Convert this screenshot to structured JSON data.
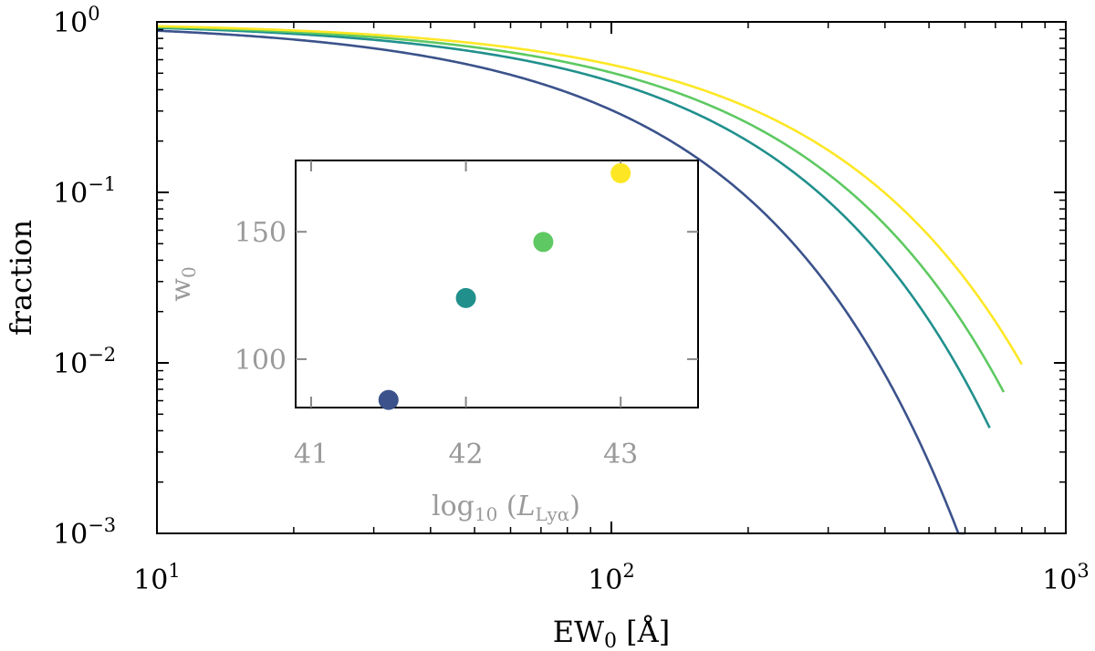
{
  "chart_data": [
    {
      "type": "line",
      "xlabel": {
        "main": "EW",
        "sub": "0",
        "unit": " [Å]"
      },
      "ylabel": "fraction",
      "xscale": "log",
      "yscale": "log",
      "xlim": [
        10,
        1000
      ],
      "ylim": [
        0.001,
        1
      ],
      "xticks": [
        {
          "value": 10,
          "base": "10",
          "exp": "1"
        },
        {
          "value": 100,
          "base": "10",
          "exp": "2"
        },
        {
          "value": 1000,
          "base": "10",
          "exp": "3"
        }
      ],
      "yticks": [
        {
          "value": 1,
          "base": "10",
          "exp": "0"
        },
        {
          "value": 0.1,
          "base": "10",
          "exp": "−1"
        },
        {
          "value": 0.01,
          "base": "10",
          "exp": "−2"
        },
        {
          "value": 0.001,
          "base": "10",
          "exp": "−3"
        }
      ],
      "grid": false,
      "legend": "none",
      "series": [
        {
          "color": "#3b528b",
          "w0": 84,
          "x_end": 600
        },
        {
          "color": "#21908d",
          "w0": 124,
          "x_end": 680
        },
        {
          "color": "#5ec962",
          "w0": 146,
          "x_end": 730
        },
        {
          "color": "#fde725",
          "w0": 173,
          "x_end": 800
        }
      ]
    },
    {
      "type": "scatter",
      "xlabel": {
        "main": "log",
        "sub": "10",
        "rest": " (",
        "italic": "L",
        "italic_sub": "Lyα",
        "close": ")"
      },
      "ylabel": {
        "main": "w",
        "sub": "0"
      },
      "xlim": [
        40.9,
        43.5
      ],
      "ylim": [
        81,
        178
      ],
      "xticks": [
        41,
        42,
        43
      ],
      "yticks": [
        100,
        150
      ],
      "grid": false,
      "points": [
        {
          "x": 41.5,
          "y": 84,
          "color": "#3b528b"
        },
        {
          "x": 42.0,
          "y": 124,
          "color": "#21908d"
        },
        {
          "x": 42.5,
          "y": 146,
          "color": "#5ec962"
        },
        {
          "x": 43.0,
          "y": 173,
          "color": "#fde725"
        }
      ]
    }
  ]
}
